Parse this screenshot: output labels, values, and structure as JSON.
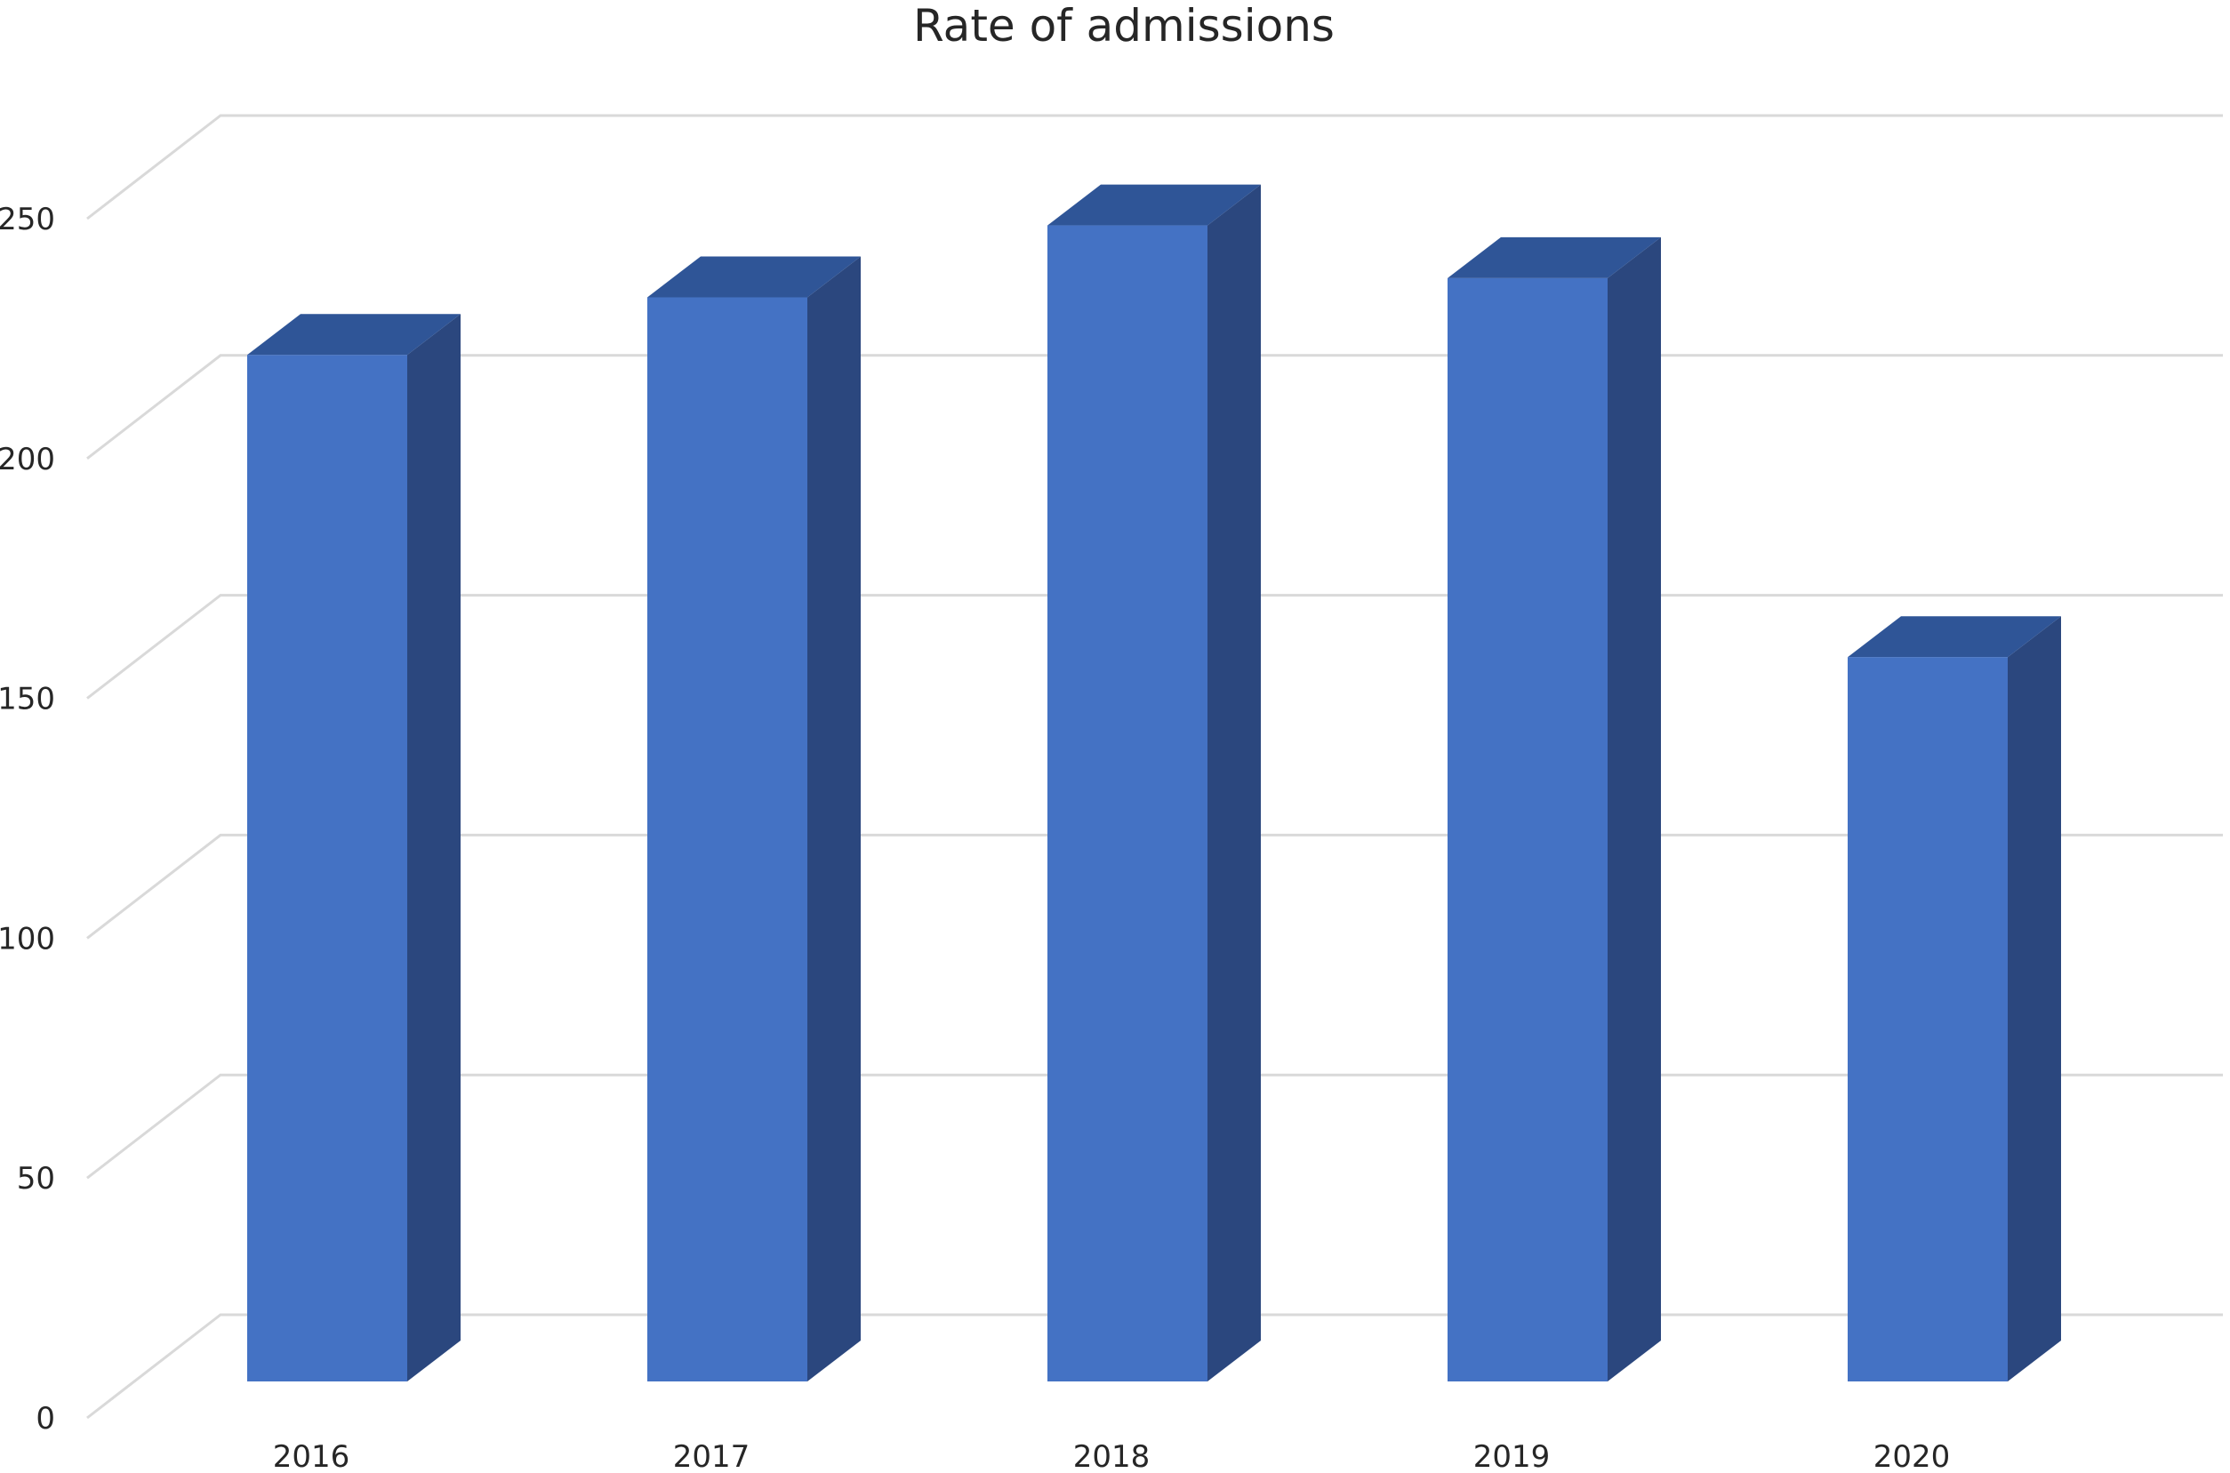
{
  "chart_data": {
    "type": "bar",
    "title": "Rate of admissions",
    "xlabel": "",
    "ylabel": "",
    "categories": [
      "2016",
      "2017",
      "2018",
      "2019",
      "2020"
    ],
    "values": [
      214,
      226,
      241,
      230,
      151
    ],
    "ylim": [
      0,
      250
    ],
    "yticks": [
      0,
      50,
      100,
      150,
      200,
      250
    ],
    "grid": true,
    "legend": "none",
    "style": "3d-column",
    "colors": {
      "front": "#4472c4",
      "top": "#2f5597",
      "side": "#2b477e",
      "grid": "#d9d9d9",
      "text": "#262626"
    }
  }
}
